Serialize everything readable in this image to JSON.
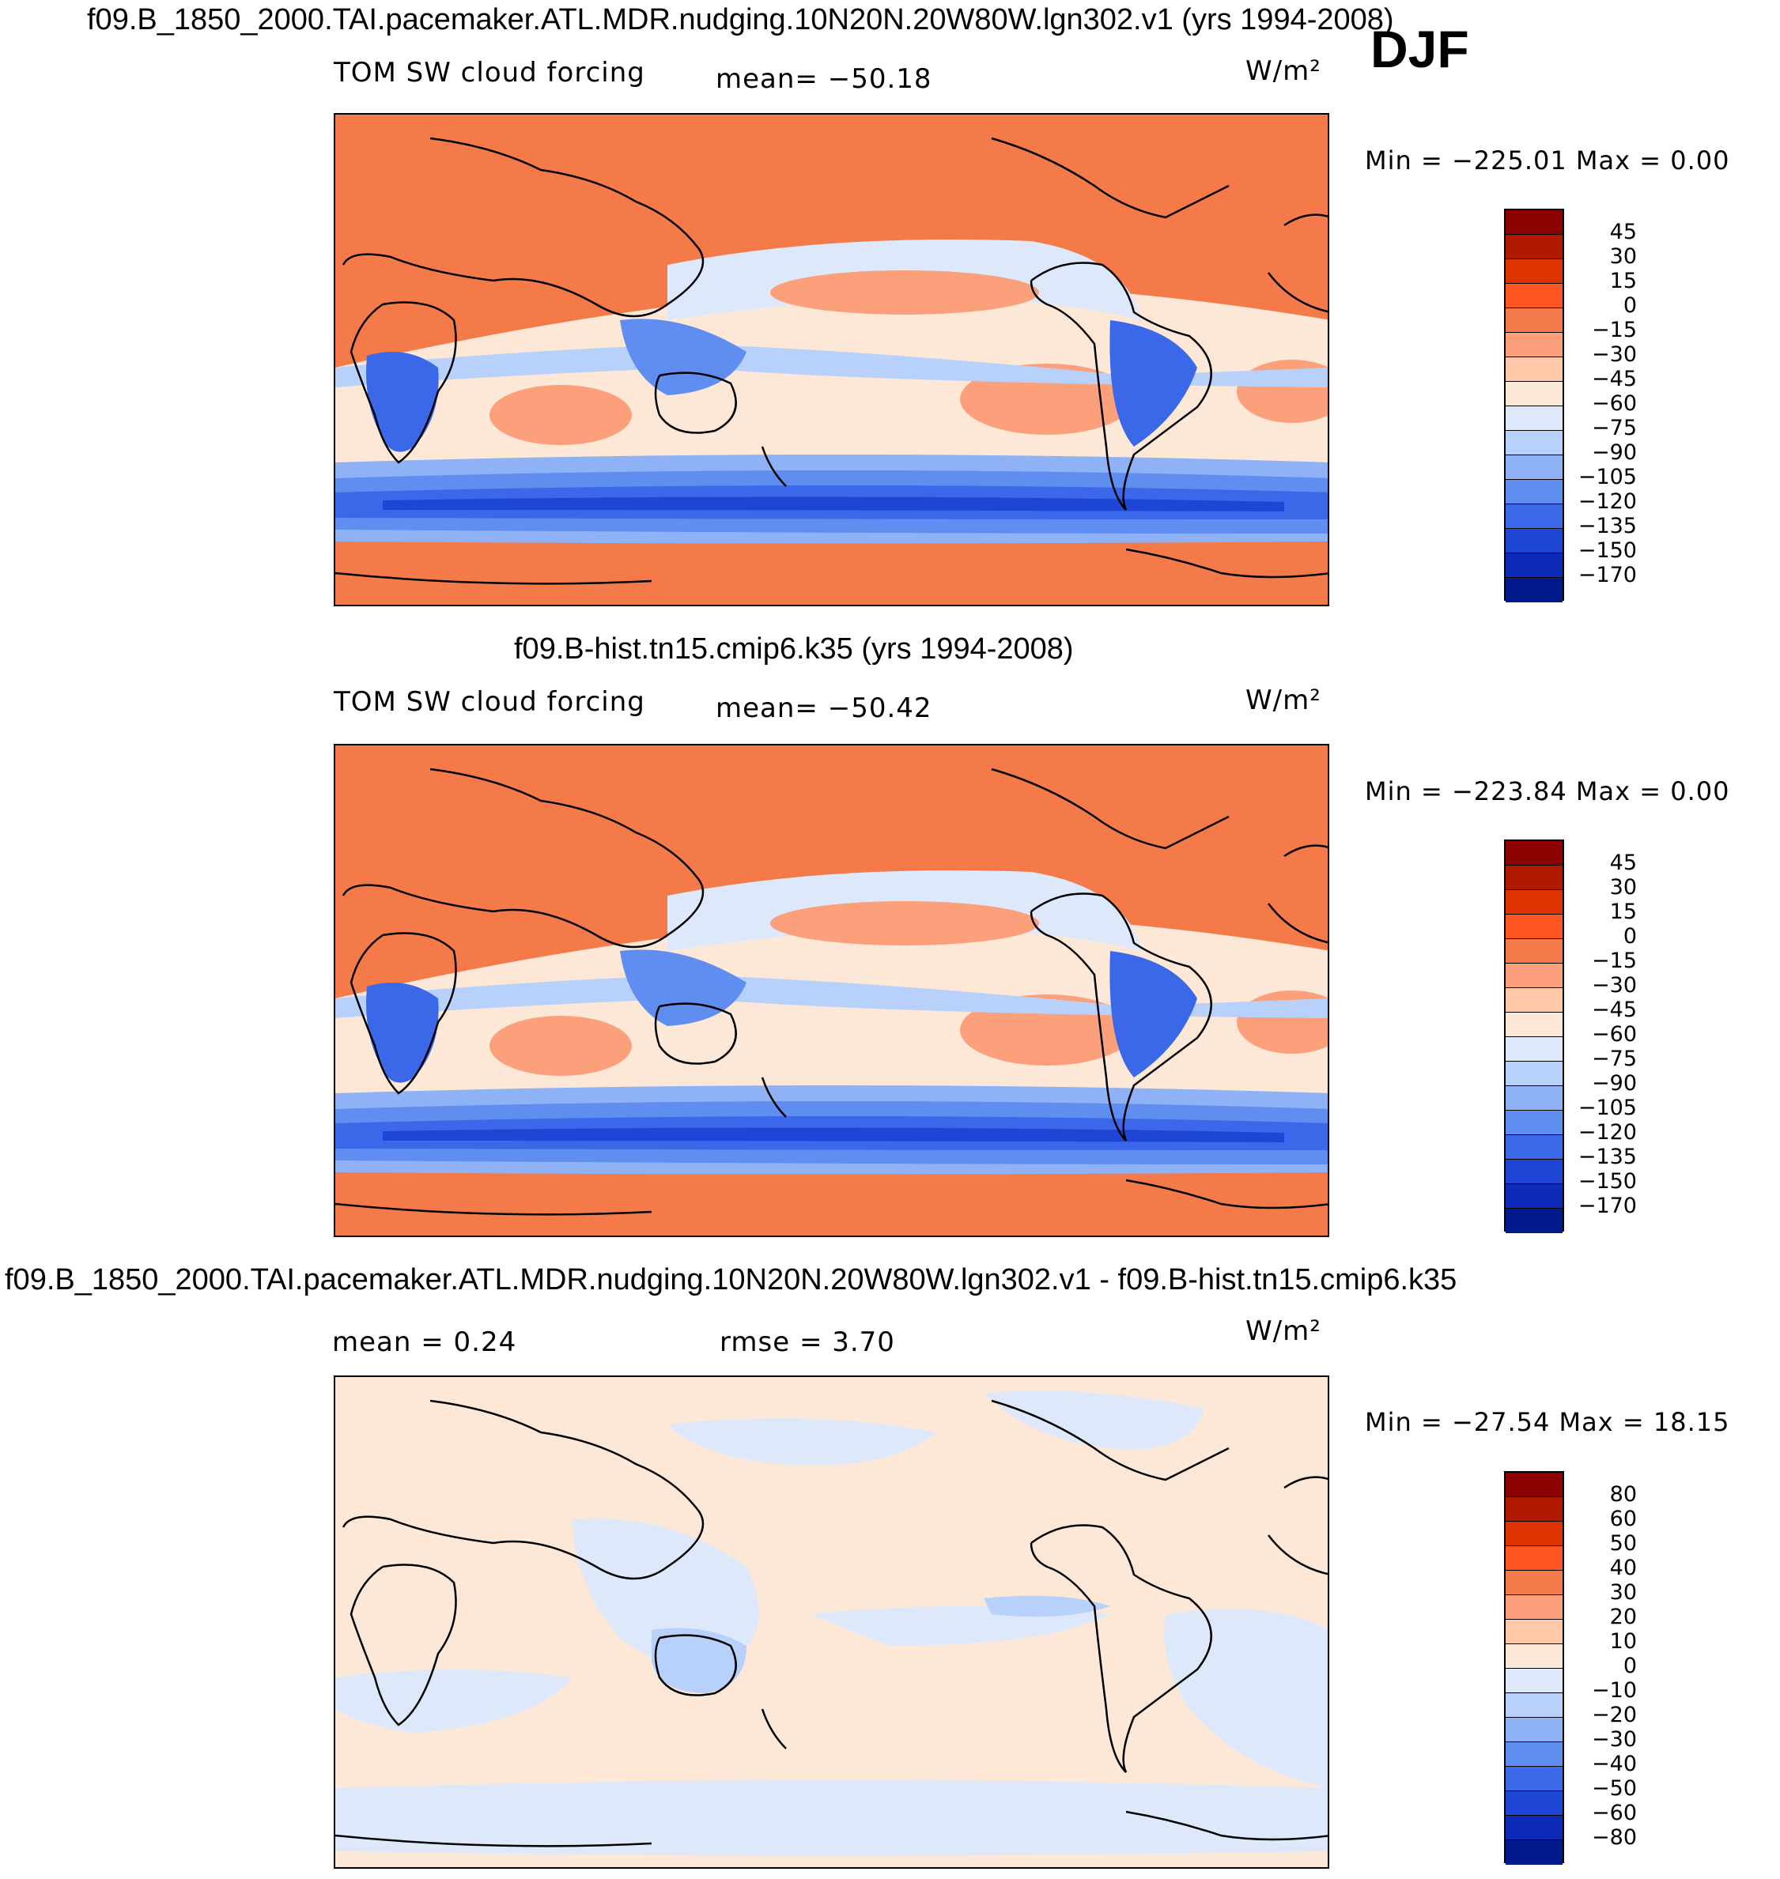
{
  "djf": "DJF",
  "panels": [
    {
      "title": "f09.B_1850_2000.TAI.pacemaker.ATL.MDR.nudging.10N20N.20W80W.lgn302.v1 (yrs 1994-2008)",
      "variable": "TOM SW cloud forcing",
      "stat1": "mean= −50.18",
      "stat2": "",
      "units": "W/m²",
      "minmax": "Min = −225.01 Max =    0.00",
      "levels": [
        "45",
        "30",
        "15",
        "0",
        "−15",
        "−30",
        "−45",
        "−60",
        "−75",
        "−90",
        "−105",
        "−120",
        "−135",
        "−150",
        "−170"
      ],
      "colors": [
        "#8b0000",
        "#b21a00",
        "#dd3300",
        "#ff5522",
        "#f47a4a",
        "#fba07b",
        "#ffc9aa",
        "#fde8d8",
        "#dde9fb",
        "#b8d1fb",
        "#8fb2f6",
        "#5f8df0",
        "#3a68e8",
        "#1e45d6",
        "#0d2ab8",
        "#001a8c"
      ]
    },
    {
      "title": "f09.B-hist.tn15.cmip6.k35 (yrs 1994-2008)",
      "variable": "TOM SW cloud forcing",
      "stat1": "mean= −50.42",
      "stat2": "",
      "units": "W/m²",
      "minmax": "Min = −223.84 Max =    0.00",
      "levels": [
        "45",
        "30",
        "15",
        "0",
        "−15",
        "−30",
        "−45",
        "−60",
        "−75",
        "−90",
        "−105",
        "−120",
        "−135",
        "−150",
        "−170"
      ],
      "colors": [
        "#8b0000",
        "#b21a00",
        "#dd3300",
        "#ff5522",
        "#f47a4a",
        "#fba07b",
        "#ffc9aa",
        "#fde8d8",
        "#dde9fb",
        "#b8d1fb",
        "#8fb2f6",
        "#5f8df0",
        "#3a68e8",
        "#1e45d6",
        "#0d2ab8",
        "#001a8c"
      ]
    },
    {
      "title": "f09.B_1850_2000.TAI.pacemaker.ATL.MDR.nudging.10N20N.20W80W.lgn302.v1 - f09.B-hist.tn15.cmip6.k35",
      "variable": "mean =    0.24",
      "stat1": "rmse =    3.70",
      "stat2": "",
      "units": "W/m²",
      "minmax": "Min = −27.54 Max =  18.15",
      "levels": [
        "80",
        "60",
        "50",
        "40",
        "30",
        "20",
        "10",
        "0",
        "−10",
        "−20",
        "−30",
        "−40",
        "−50",
        "−60",
        "−80"
      ],
      "colors": [
        "#8b0000",
        "#b21a00",
        "#dd3300",
        "#ff5522",
        "#f47a4a",
        "#fba07b",
        "#ffc9aa",
        "#fde8d8",
        "#dde9fb",
        "#b8d1fb",
        "#8fb2f6",
        "#5f8df0",
        "#3a68e8",
        "#1e45d6",
        "#0d2ab8",
        "#001a8c"
      ]
    }
  ]
}
